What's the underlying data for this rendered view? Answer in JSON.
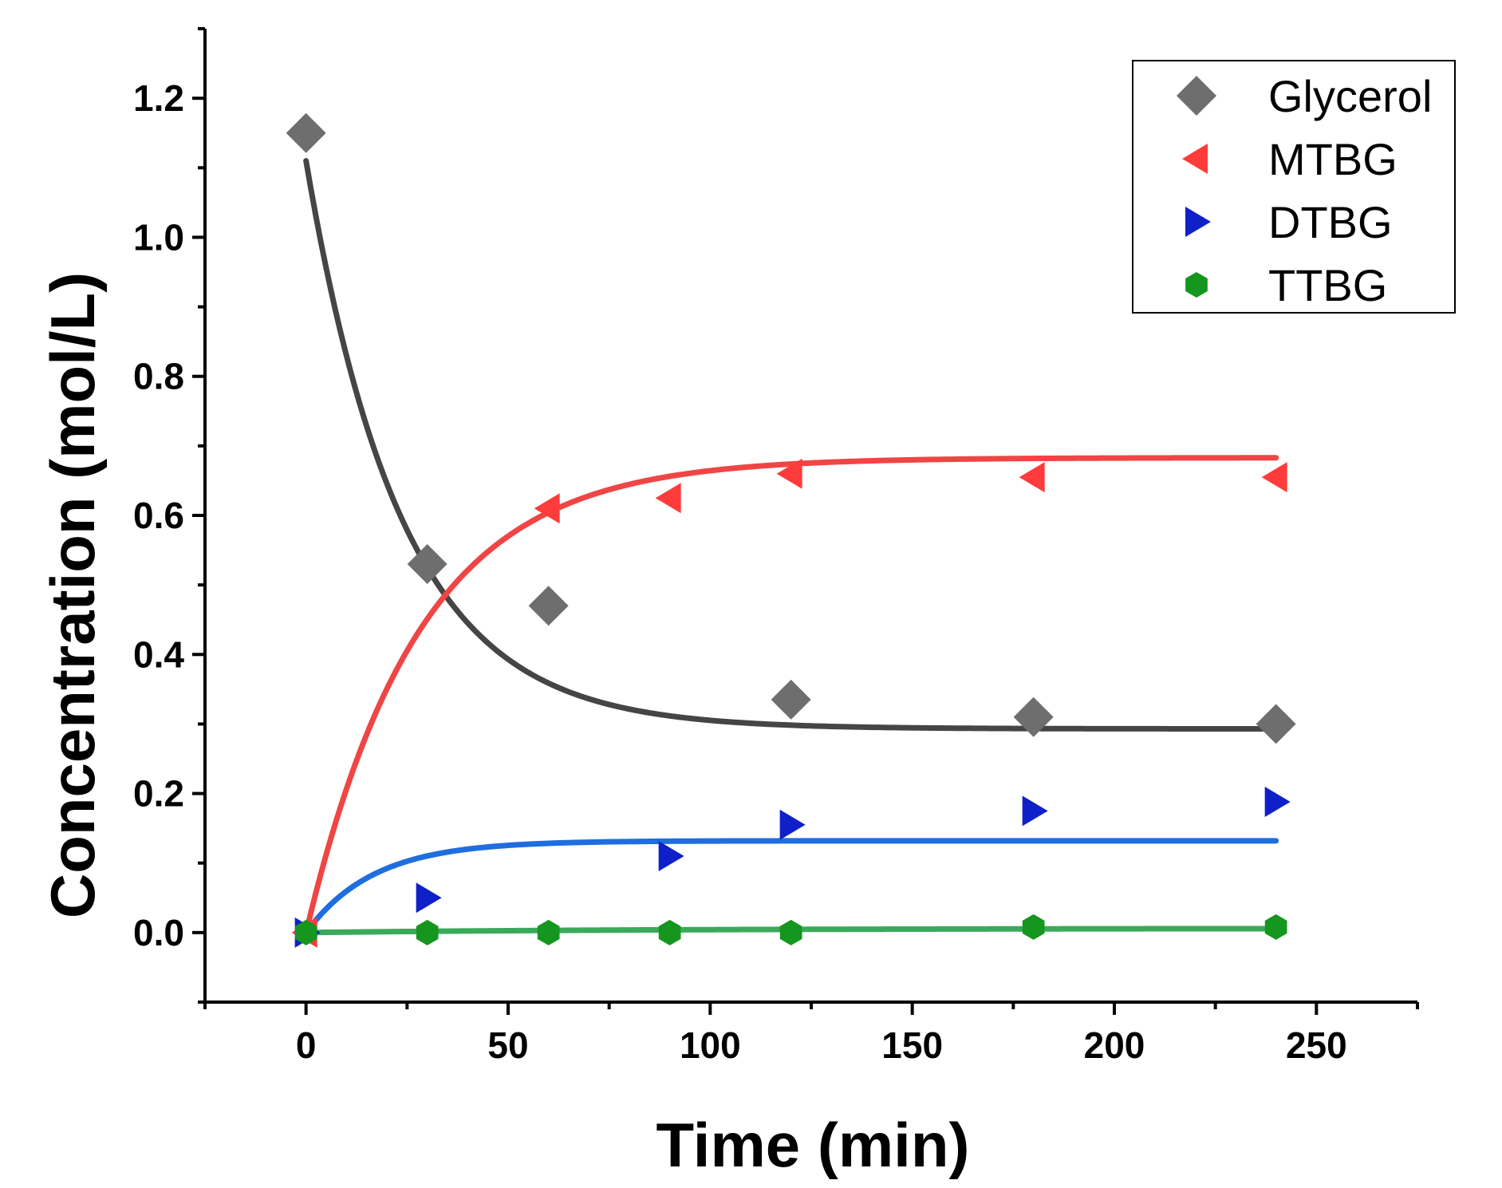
{
  "chart_data": {
    "type": "scatter",
    "xlabel": "Time (min)",
    "ylabel": "Concentration (mol/L)",
    "xlim": [
      -25,
      275
    ],
    "ylim": [
      -0.1,
      1.3
    ],
    "x_ticks": [
      0,
      50,
      100,
      150,
      200,
      250
    ],
    "x_tick_labels": [
      "0",
      "50",
      "100",
      "150",
      "200",
      "250"
    ],
    "y_ticks": [
      0.0,
      0.2,
      0.4,
      0.6,
      0.8,
      1.0,
      1.2
    ],
    "y_tick_labels": [
      "0.0",
      "0.2",
      "0.4",
      "0.6",
      "0.8",
      "1.0",
      "1.2"
    ],
    "grid": false,
    "legend_position": "top-right",
    "series": [
      {
        "name": "Glycerol",
        "marker": "diamond",
        "marker_color": "#6e6e6e",
        "line_color": "#454545",
        "points": [
          [
            0,
            1.15
          ],
          [
            30,
            0.53
          ],
          [
            60,
            0.47
          ],
          [
            120,
            0.335
          ],
          [
            180,
            0.31
          ],
          [
            240,
            0.3
          ]
        ],
        "fit": {
          "start": 1.11,
          "end": 0.293,
          "k": 0.042,
          "x0": 0,
          "x1": 240
        }
      },
      {
        "name": "MTBG",
        "marker": "triangle-left",
        "marker_color": "#ff3b3b",
        "line_color": "#f04545",
        "points": [
          [
            0,
            0.0
          ],
          [
            60,
            0.61
          ],
          [
            90,
            0.625
          ],
          [
            120,
            0.66
          ],
          [
            180,
            0.655
          ],
          [
            240,
            0.655
          ]
        ],
        "fit": {
          "start": 0.0,
          "end": 0.683,
          "k": 0.036,
          "x0": 0,
          "x1": 240
        }
      },
      {
        "name": "DTBG",
        "marker": "triangle-right",
        "marker_color": "#1020c8",
        "line_color": "#1f6ee0",
        "points": [
          [
            0,
            0.0
          ],
          [
            30,
            0.05
          ],
          [
            90,
            0.11
          ],
          [
            120,
            0.155
          ],
          [
            180,
            0.175
          ],
          [
            240,
            0.188
          ]
        ],
        "fit": {
          "start": 0.0,
          "end": 0.132,
          "k": 0.06,
          "x0": 0,
          "x1": 240
        }
      },
      {
        "name": "TTBG",
        "marker": "hexagon",
        "marker_color": "#15961e",
        "line_color": "#3aaa5a",
        "points": [
          [
            0,
            0.0
          ],
          [
            30,
            0.0
          ],
          [
            60,
            0.0
          ],
          [
            90,
            0.0
          ],
          [
            120,
            0.0
          ],
          [
            180,
            0.008
          ],
          [
            240,
            0.008
          ]
        ],
        "fit": {
          "start": 0.0,
          "end": 0.006,
          "k": 0.012,
          "x0": 0,
          "x1": 240
        }
      }
    ]
  }
}
